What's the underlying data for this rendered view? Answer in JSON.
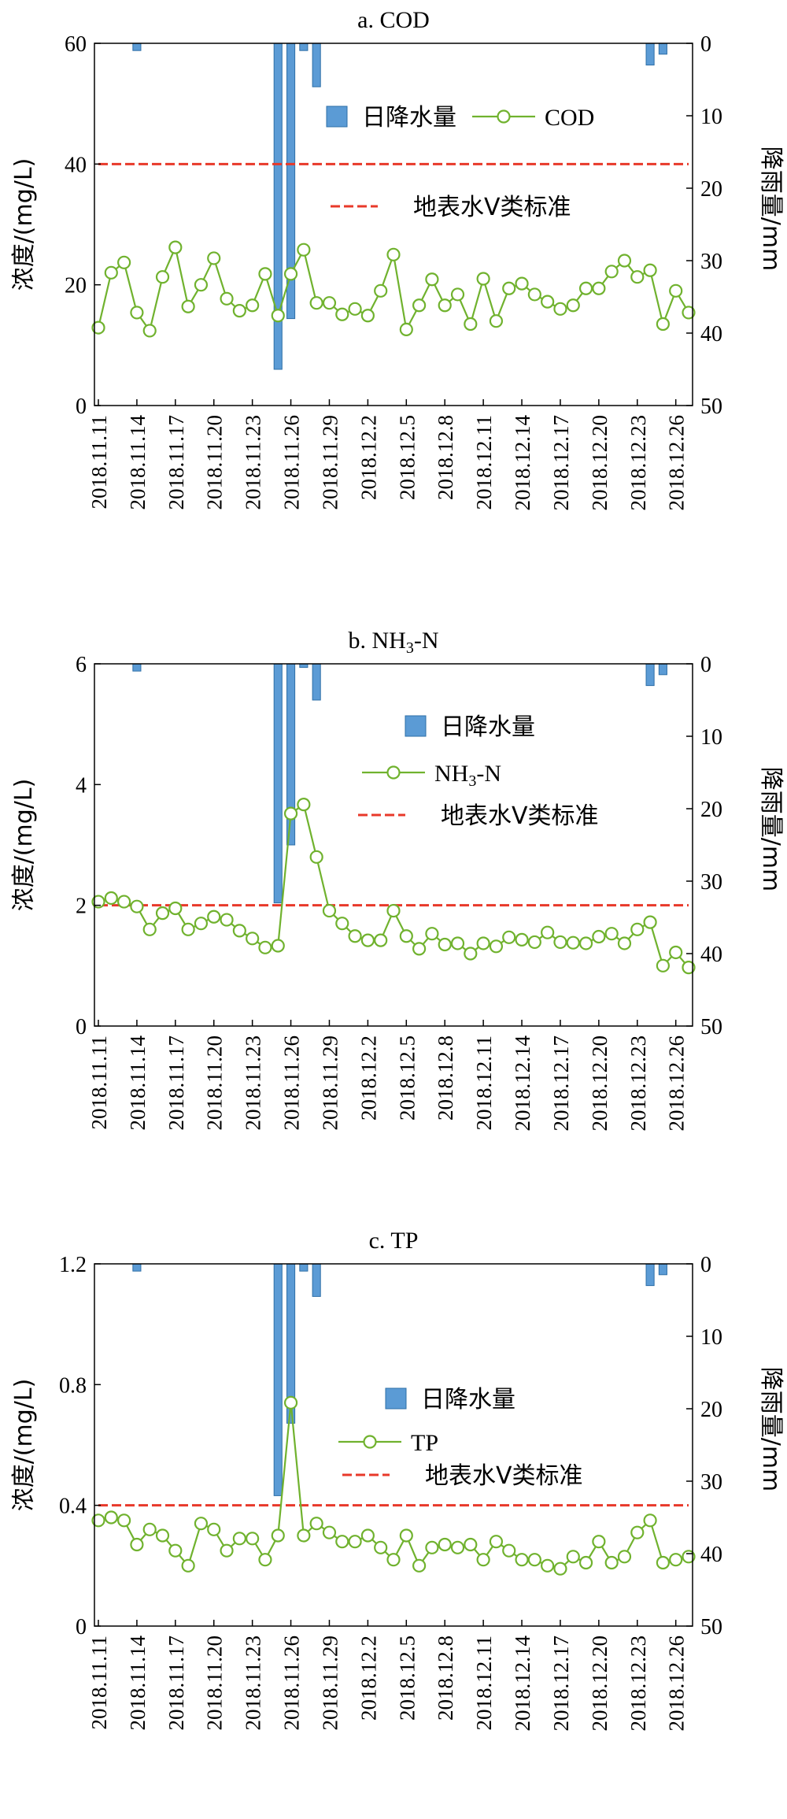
{
  "legend_labels": {
    "rain": "日降水量",
    "standard": "地表水V类标准"
  },
  "colors": {
    "rain_fill": "#5B9BD5",
    "rain_stroke": "#2E6FA7",
    "series": "#70B22E",
    "standard": "#E8392A",
    "axis": "#000000"
  },
  "x_tick_labels": [
    "2018.11.11",
    "2018.11.14",
    "2018.11.17",
    "2018.11.20",
    "2018.11.23",
    "2018.11.26",
    "2018.11.29",
    "2018.12.2",
    "2018.12.5",
    "2018.12.8",
    "2018.12.11",
    "2018.12.14",
    "2018.12.17",
    "2018.12.20",
    "2018.12.23",
    "2018.12.26"
  ],
  "chart_data": [
    {
      "type": "line",
      "title": "a. COD",
      "ylabel": "浓度/(mg/L)",
      "y2label": "降雨量/mm",
      "ylim": [
        0,
        60
      ],
      "yticks": [
        "0",
        "20",
        "40",
        "60"
      ],
      "y2lim": [
        0,
        50
      ],
      "y2ticks": [
        "0",
        "10",
        "20",
        "30",
        "40",
        "50"
      ],
      "y2_inverted": true,
      "series_name": "COD",
      "standard": 40,
      "legend_position": "upper-middle",
      "values": [
        12.9,
        22.0,
        23.7,
        15.4,
        12.4,
        21.3,
        26.2,
        16.4,
        20.0,
        24.4,
        17.7,
        15.7,
        16.6,
        21.8,
        14.9,
        21.8,
        25.8,
        17.0,
        17.0,
        15.1,
        16.0,
        14.9,
        19.0,
        25.0,
        12.6,
        16.6,
        20.9,
        16.6,
        18.4,
        13.5,
        21.0,
        14.0,
        19.4,
        20.2,
        18.4,
        17.2,
        16.0,
        16.6,
        19.4,
        19.4,
        22.2,
        24.0,
        21.3,
        22.4,
        13.5,
        19.0,
        15.4
      ],
      "rainfall": [
        0,
        0,
        0,
        1,
        0,
        0,
        0,
        0,
        0,
        0,
        0,
        0,
        0,
        0,
        45,
        38,
        1,
        6,
        0,
        0,
        0,
        0,
        0,
        0,
        0,
        0,
        0,
        0,
        0,
        0,
        0,
        0,
        0,
        0,
        0,
        0,
        0,
        0,
        0,
        0,
        0,
        0,
        0,
        3,
        1.5,
        0,
        0
      ]
    },
    {
      "type": "line",
      "title": "b. NH3-N",
      "title_parts": [
        "b. NH",
        "3",
        "-N"
      ],
      "ylabel": "浓度/(mg/L)",
      "y2label": "降雨量/mm",
      "ylim": [
        0,
        6
      ],
      "yticks": [
        "0",
        "2",
        "4",
        "6"
      ],
      "y2lim": [
        0,
        50
      ],
      "y2ticks": [
        "0",
        "10",
        "20",
        "30",
        "40",
        "50"
      ],
      "y2_inverted": true,
      "series_name": "NH3-N",
      "series_name_parts": [
        "NH",
        "3",
        "-N"
      ],
      "standard": 2,
      "legend_position": "upper-right",
      "values": [
        2.06,
        2.12,
        2.06,
        1.98,
        1.6,
        1.87,
        1.95,
        1.6,
        1.7,
        1.81,
        1.76,
        1.58,
        1.45,
        1.3,
        1.33,
        3.52,
        3.67,
        2.8,
        1.91,
        1.7,
        1.49,
        1.42,
        1.42,
        1.91,
        1.49,
        1.28,
        1.53,
        1.35,
        1.37,
        1.2,
        1.37,
        1.32,
        1.47,
        1.43,
        1.39,
        1.55,
        1.39,
        1.38,
        1.37,
        1.48,
        1.53,
        1.37,
        1.6,
        1.72,
        1.0,
        1.22,
        0.97
      ],
      "rainfall": [
        0,
        0,
        0,
        1,
        0,
        0,
        0,
        0,
        0,
        0,
        0,
        0,
        0,
        0,
        33,
        25,
        0.5,
        5,
        0,
        0,
        0,
        0,
        0,
        0,
        0,
        0,
        0,
        0,
        0,
        0,
        0,
        0,
        0,
        0,
        0,
        0,
        0,
        0,
        0,
        0,
        0,
        0,
        0,
        3,
        1.5,
        0,
        0
      ]
    },
    {
      "type": "line",
      "title": "c. TP",
      "ylabel": "浓度/(mg/L)",
      "y2label": "降雨量/mm",
      "ylim": [
        0,
        1.2
      ],
      "yticks": [
        "0",
        "0.4",
        "0.8",
        "1.2"
      ],
      "y2lim": [
        0,
        50
      ],
      "y2ticks": [
        "0",
        "10",
        "20",
        "30",
        "40",
        "50"
      ],
      "y2_inverted": true,
      "series_name": "TP",
      "standard": 0.4,
      "legend_position": "upper-middle",
      "values": [
        0.35,
        0.36,
        0.35,
        0.27,
        0.32,
        0.3,
        0.25,
        0.2,
        0.34,
        0.32,
        0.25,
        0.29,
        0.29,
        0.22,
        0.3,
        0.74,
        0.3,
        0.34,
        0.31,
        0.28,
        0.28,
        0.3,
        0.26,
        0.22,
        0.3,
        0.2,
        0.26,
        0.27,
        0.26,
        0.27,
        0.22,
        0.28,
        0.25,
        0.22,
        0.22,
        0.2,
        0.19,
        0.23,
        0.21,
        0.28,
        0.21,
        0.23,
        0.31,
        0.35,
        0.21,
        0.22,
        0.23
      ],
      "rainfall": [
        0,
        0,
        0,
        1,
        0,
        0,
        0,
        0,
        0,
        0,
        0,
        0,
        0,
        0,
        32,
        22,
        1,
        4.5,
        0,
        0,
        0,
        0,
        0,
        0,
        0,
        0,
        0,
        0,
        0,
        0,
        0,
        0,
        0,
        0,
        0,
        0,
        0,
        0,
        0,
        0,
        0,
        0,
        0,
        3,
        1.5,
        0,
        0
      ]
    }
  ]
}
